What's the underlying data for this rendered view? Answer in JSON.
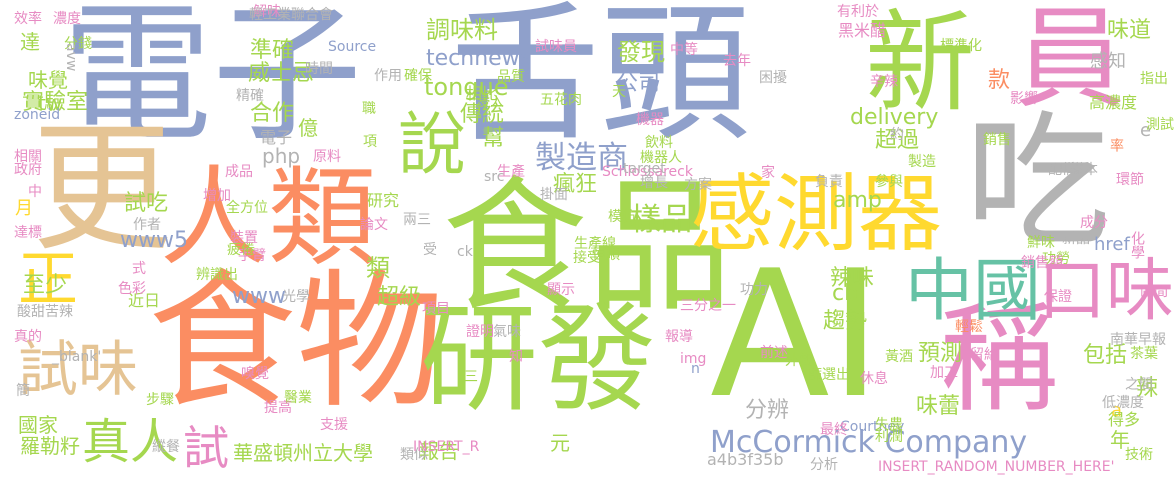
{
  "palette": {
    "blue": "#8fa0cb",
    "green": "#a5d74f",
    "orange": "#fb8d62",
    "pink": "#e78bc3",
    "yellow": "#ffd92f",
    "tan": "#e5c494",
    "gray": "#b3b3b3",
    "teal": "#66c2a5"
  },
  "words": [
    {
      "text": "電子",
      "color": "blue"
    },
    {
      "text": "舌頭",
      "color": "blue"
    },
    {
      "text": "新",
      "color": "green"
    },
    {
      "text": "員",
      "color": "pink"
    },
    {
      "text": "吃",
      "color": "gray"
    },
    {
      "text": "更",
      "color": "tan"
    },
    {
      "text": "人類",
      "color": "orange"
    },
    {
      "text": "說",
      "color": "green"
    },
    {
      "text": "食品",
      "color": "green"
    },
    {
      "text": "感測器",
      "color": "yellow"
    },
    {
      "text": "食物",
      "color": "orange"
    },
    {
      "text": "AI",
      "color": "green"
    },
    {
      "text": "稱",
      "color": "pink"
    },
    {
      "text": "研發",
      "color": "green"
    },
    {
      "text": "中國",
      "color": "teal"
    },
    {
      "text": "口味",
      "color": "pink"
    },
    {
      "text": "正",
      "color": "yellow"
    },
    {
      "text": "試味",
      "color": "tan"
    },
    {
      "text": "真人",
      "color": "green"
    },
    {
      "text": "試",
      "color": "pink"
    },
    {
      "text": "McCormick Company",
      "color": "blue"
    },
    {
      "text": "製造商",
      "color": "blue"
    },
    {
      "text": "樣品",
      "color": "green"
    },
    {
      "text": "羅勒籽",
      "color": "green"
    },
    {
      "text": "華盛頓州立大學",
      "color": "green"
    },
    {
      "text": "調味料",
      "color": "green"
    },
    {
      "text": "發現",
      "color": "green"
    },
    {
      "text": "technews",
      "color": "blue"
    },
    {
      "text": "tongue",
      "color": "green"
    },
    {
      "text": "公司",
      "color": "blue"
    },
    {
      "text": "準確",
      "color": "green"
    },
    {
      "text": "威士忌",
      "color": "green"
    },
    {
      "text": "實驗室",
      "color": "green"
    },
    {
      "text": "合作",
      "color": "green"
    },
    {
      "text": "傳統",
      "color": "green"
    },
    {
      "text": "幫",
      "color": "green"
    },
    {
      "text": "www5",
      "color": "blue"
    },
    {
      "text": "www",
      "color": "blue"
    },
    {
      "text": "試吃",
      "color": "green"
    },
    {
      "text": "瘋狂",
      "color": "green"
    },
    {
      "text": "delivery",
      "color": "green"
    },
    {
      "text": "amp",
      "color": "green"
    },
    {
      "text": "款",
      "color": "orange"
    },
    {
      "text": "味道",
      "color": "green"
    },
    {
      "text": "至少",
      "color": "green"
    },
    {
      "text": "超級",
      "color": "green"
    },
    {
      "text": "趨勢",
      "color": "green"
    },
    {
      "text": "辣味",
      "color": "green"
    },
    {
      "text": "預測",
      "color": "green"
    },
    {
      "text": "包括",
      "color": "green"
    },
    {
      "text": "味蕾",
      "color": "green"
    },
    {
      "text": "分辨",
      "color": "gray"
    },
    {
      "text": "國家",
      "color": "green"
    },
    {
      "text": "報告",
      "color": "green"
    },
    {
      "text": "a4b3f35b",
      "color": "gray"
    },
    {
      "text": "年",
      "color": "green"
    },
    {
      "text": "味覺",
      "color": "green"
    },
    {
      "text": "達",
      "color": "green"
    },
    {
      "text": "tw",
      "color": "green"
    },
    {
      "text": "php",
      "color": "gray"
    },
    {
      "text": "億",
      "color": "green"
    },
    {
      "text": "cb",
      "color": "green"
    },
    {
      "text": "超過",
      "color": "green"
    },
    {
      "text": "研究",
      "color": "green"
    },
    {
      "text": "相比",
      "color": "green"
    },
    {
      "text": "類",
      "color": "green"
    },
    {
      "text": "元",
      "color": "green"
    },
    {
      "text": "月",
      "color": "yellow"
    },
    {
      "text": "近日",
      "color": "green"
    },
    {
      "text": "INSERT_RANDOM_NUMBER_HERE'",
      "color": "pink"
    },
    {
      "text": "Courtney",
      "color": "blue"
    },
    {
      "text": "Schlossareck",
      "color": "pink"
    },
    {
      "text": "電子",
      "color": "gray"
    },
    {
      "text": "黑米醋",
      "color": "pink"
    },
    {
      "text": "五花肉",
      "color": "green"
    },
    {
      "text": "試味員",
      "color": "pink"
    },
    {
      "text": "效率",
      "color": "pink"
    },
    {
      "text": "濃度",
      "color": "pink"
    },
    {
      "text": "解味",
      "color": "pink"
    },
    {
      "text": "分錢",
      "color": "green"
    },
    {
      "text": "有利於",
      "color": "pink"
    },
    {
      "text": "標準化",
      "color": "green"
    },
    {
      "text": "指出",
      "color": "green"
    },
    {
      "text": "感知",
      "color": "gray"
    },
    {
      "text": "高濃度",
      "color": "green"
    },
    {
      "text": "e",
      "color": "gray"
    },
    {
      "text": "href",
      "color": "blue"
    },
    {
      "text": "a",
      "color": "yellow"
    },
    {
      "text": "得多",
      "color": "green"
    },
    {
      "text": "辣",
      "color": "green"
    },
    {
      "text": "化學",
      "color": "pink"
    },
    {
      "text": "成分",
      "color": "pink"
    },
    {
      "text": "新品",
      "color": "gray"
    },
    {
      "text": "品質",
      "color": "green"
    },
    {
      "text": "飲料",
      "color": "green"
    },
    {
      "text": "機器人",
      "color": "green"
    },
    {
      "text": "模仿",
      "color": "green"
    },
    {
      "text": "生產線",
      "color": "green"
    },
    {
      "text": "接受",
      "color": "green"
    },
    {
      "text": "功力",
      "color": "gray"
    },
    {
      "text": "三分之一",
      "color": "pink"
    },
    {
      "text": "報導",
      "color": "pink"
    },
    {
      "text": "img",
      "color": "pink"
    },
    {
      "text": "前述",
      "color": "pink"
    },
    {
      "text": "外觀",
      "color": "green"
    },
    {
      "text": "篩選出",
      "color": "green"
    },
    {
      "text": "休息",
      "color": "pink"
    },
    {
      "text": "技術",
      "color": "green"
    },
    {
      "text": "分析",
      "color": "gray"
    },
    {
      "text": "最終",
      "color": "pink"
    },
    {
      "text": "失農",
      "color": "green"
    },
    {
      "text": "利潤",
      "color": "green"
    },
    {
      "text": "南華早報",
      "color": "gray"
    },
    {
      "text": "茶葉",
      "color": "green"
    },
    {
      "text": "低濃度",
      "color": "gray"
    },
    {
      "text": "留給",
      "color": "pink"
    },
    {
      "text": "之間",
      "color": "gray"
    },
    {
      "text": "加工",
      "color": "pink"
    },
    {
      "text": "保證",
      "color": "pink"
    },
    {
      "text": "輕鬆",
      "color": "orange"
    },
    {
      "text": "黃酒",
      "color": "green"
    },
    {
      "text": "鮮味",
      "color": "green"
    },
    {
      "text": "功勞",
      "color": "green"
    },
    {
      "text": "區間",
      "color": "pink"
    },
    {
      "text": "銷售額",
      "color": "pink"
    },
    {
      "text": "生產",
      "color": "pink"
    },
    {
      "text": "增長",
      "color": "gray"
    },
    {
      "text": "方案",
      "color": "gray"
    },
    {
      "text": "家",
      "color": "pink"
    },
    {
      "text": "負責",
      "color": "gray"
    },
    {
      "text": "參與",
      "color": "green"
    },
    {
      "text": "製造",
      "color": "green"
    },
    {
      "text": "銷售",
      "color": "green"
    },
    {
      "text": "配備",
      "color": "gray"
    },
    {
      "text": "樣本",
      "color": "gray"
    },
    {
      "text": "環節",
      "color": "pink"
    },
    {
      "text": "率",
      "color": "orange"
    },
    {
      "text": "測試",
      "color": "green"
    },
    {
      "text": "約",
      "color": "gray"
    },
    {
      "text": "影響",
      "color": "pink"
    },
    {
      "text": "辛辣",
      "color": "pink"
    },
    {
      "text": "困擾",
      "color": "gray"
    },
    {
      "text": "去年",
      "color": "pink"
    },
    {
      "text": "天",
      "color": "green"
    },
    {
      "text": "浸入",
      "color": "green"
    },
    {
      "text": "機器",
      "color": "pink"
    },
    {
      "text": "target",
      "color": "gray"
    },
    {
      "text": "中等",
      "color": "pink"
    },
    {
      "text": "Source",
      "color": "blue"
    },
    {
      "text": "時間",
      "color": "gray"
    },
    {
      "text": "輕工業聯合會",
      "color": "gray"
    },
    {
      "text": "zoneid",
      "color": "blue"
    },
    {
      "text": "相關",
      "color": "pink"
    },
    {
      "text": "政府",
      "color": "pink"
    },
    {
      "text": "原料",
      "color": "pink"
    },
    {
      "text": "精確",
      "color": "gray"
    },
    {
      "text": "作用",
      "color": "gray"
    },
    {
      "text": "確保",
      "color": "green"
    },
    {
      "text": "職",
      "color": "green"
    },
    {
      "text": "項",
      "color": "green"
    },
    {
      "text": "src",
      "color": "gray"
    },
    {
      "text": "掛面",
      "color": "gray"
    },
    {
      "text": "兩三",
      "color": "gray"
    },
    {
      "text": "論文",
      "color": "pink"
    },
    {
      "text": "受",
      "color": "gray"
    },
    {
      "text": "ck",
      "color": "gray"
    },
    {
      "text": "恒順",
      "color": "green"
    },
    {
      "text": "顯示",
      "color": "pink"
    },
    {
      "text": "項目",
      "color": "pink"
    },
    {
      "text": "證明",
      "color": "pink"
    },
    {
      "text": "氣味",
      "color": "gray"
    },
    {
      "text": "三",
      "color": "green"
    },
    {
      "text": "知",
      "color": "pink"
    },
    {
      "text": "n",
      "color": "blue"
    },
    {
      "text": "類似",
      "color": "gray"
    },
    {
      "text": "INSERT_R",
      "color": "pink"
    },
    {
      "text": "支援",
      "color": "pink"
    },
    {
      "text": "醫業",
      "color": "green"
    },
    {
      "text": "提高",
      "color": "pink"
    },
    {
      "text": "步驟",
      "color": "green"
    },
    {
      "text": "嗅覺",
      "color": "pink"
    },
    {
      "text": "_blank'",
      "color": "gray"
    },
    {
      "text": "光學",
      "color": "gray"
    },
    {
      "text": "辨識出",
      "color": "green"
    },
    {
      "text": "色彩",
      "color": "pink"
    },
    {
      "text": "式",
      "color": "pink"
    },
    {
      "text": "手臂",
      "color": "pink"
    },
    {
      "text": "疲倦",
      "color": "green"
    },
    {
      "text": "裝置",
      "color": "pink"
    },
    {
      "text": "作者",
      "color": "gray"
    },
    {
      "text": "全方位",
      "color": "green"
    },
    {
      "text": "增加",
      "color": "pink"
    },
    {
      "text": "成品",
      "color": "pink"
    },
    {
      "text": "avw",
      "color": "gray"
    },
    {
      "text": "酸甜苦辣",
      "color": "gray"
    },
    {
      "text": "真的",
      "color": "pink"
    },
    {
      "text": "簡",
      "color": "gray"
    },
    {
      "text": "縱餐",
      "color": "gray"
    },
    {
      "text": "達標",
      "color": "pink"
    },
    {
      "text": "中",
      "color": "pink"
    }
  ]
}
